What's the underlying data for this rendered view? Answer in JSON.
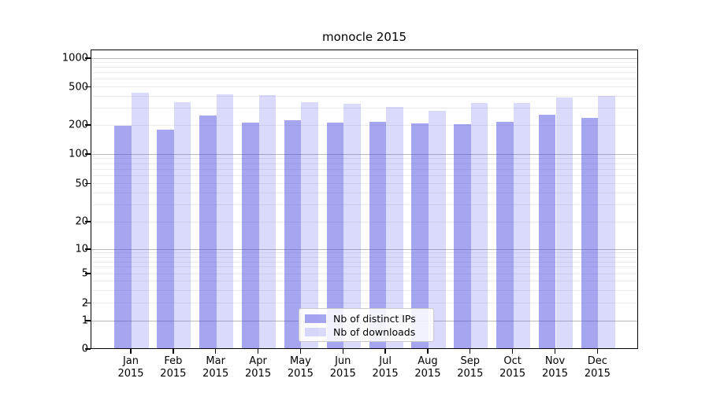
{
  "title": "monocle 2015",
  "chart_data": {
    "type": "bar",
    "title": "monocle 2015",
    "categories": [
      "Jan",
      "Feb",
      "Mar",
      "Apr",
      "May",
      "Jun",
      "Jul",
      "Aug",
      "Sep",
      "Oct",
      "Nov",
      "Dec"
    ],
    "x_year_label": "2015",
    "series": [
      {
        "name": "Nb of distinct IPs",
        "color": "#a6a6f0",
        "values": [
          193,
          174,
          244,
          206,
          221,
          208,
          213,
          205,
          199,
          211,
          250,
          234
        ]
      },
      {
        "name": "Nb of downloads",
        "color": "#dcdcf9",
        "values": [
          422,
          340,
          409,
          399,
          338,
          324,
          304,
          278,
          334,
          335,
          380,
          395
        ]
      }
    ],
    "yscale": "symlog",
    "ylabel": "",
    "xlabel": "",
    "yticks": [
      "0",
      "1",
      "2",
      "5",
      "10",
      "20",
      "50",
      "100",
      "200",
      "500",
      "1000"
    ],
    "ylim": [
      0,
      1230
    ],
    "grid": "both",
    "legend_position": "lower center"
  },
  "legend": {
    "items": [
      {
        "label": "Nb of distinct IPs"
      },
      {
        "label": "Nb of downloads"
      }
    ]
  }
}
